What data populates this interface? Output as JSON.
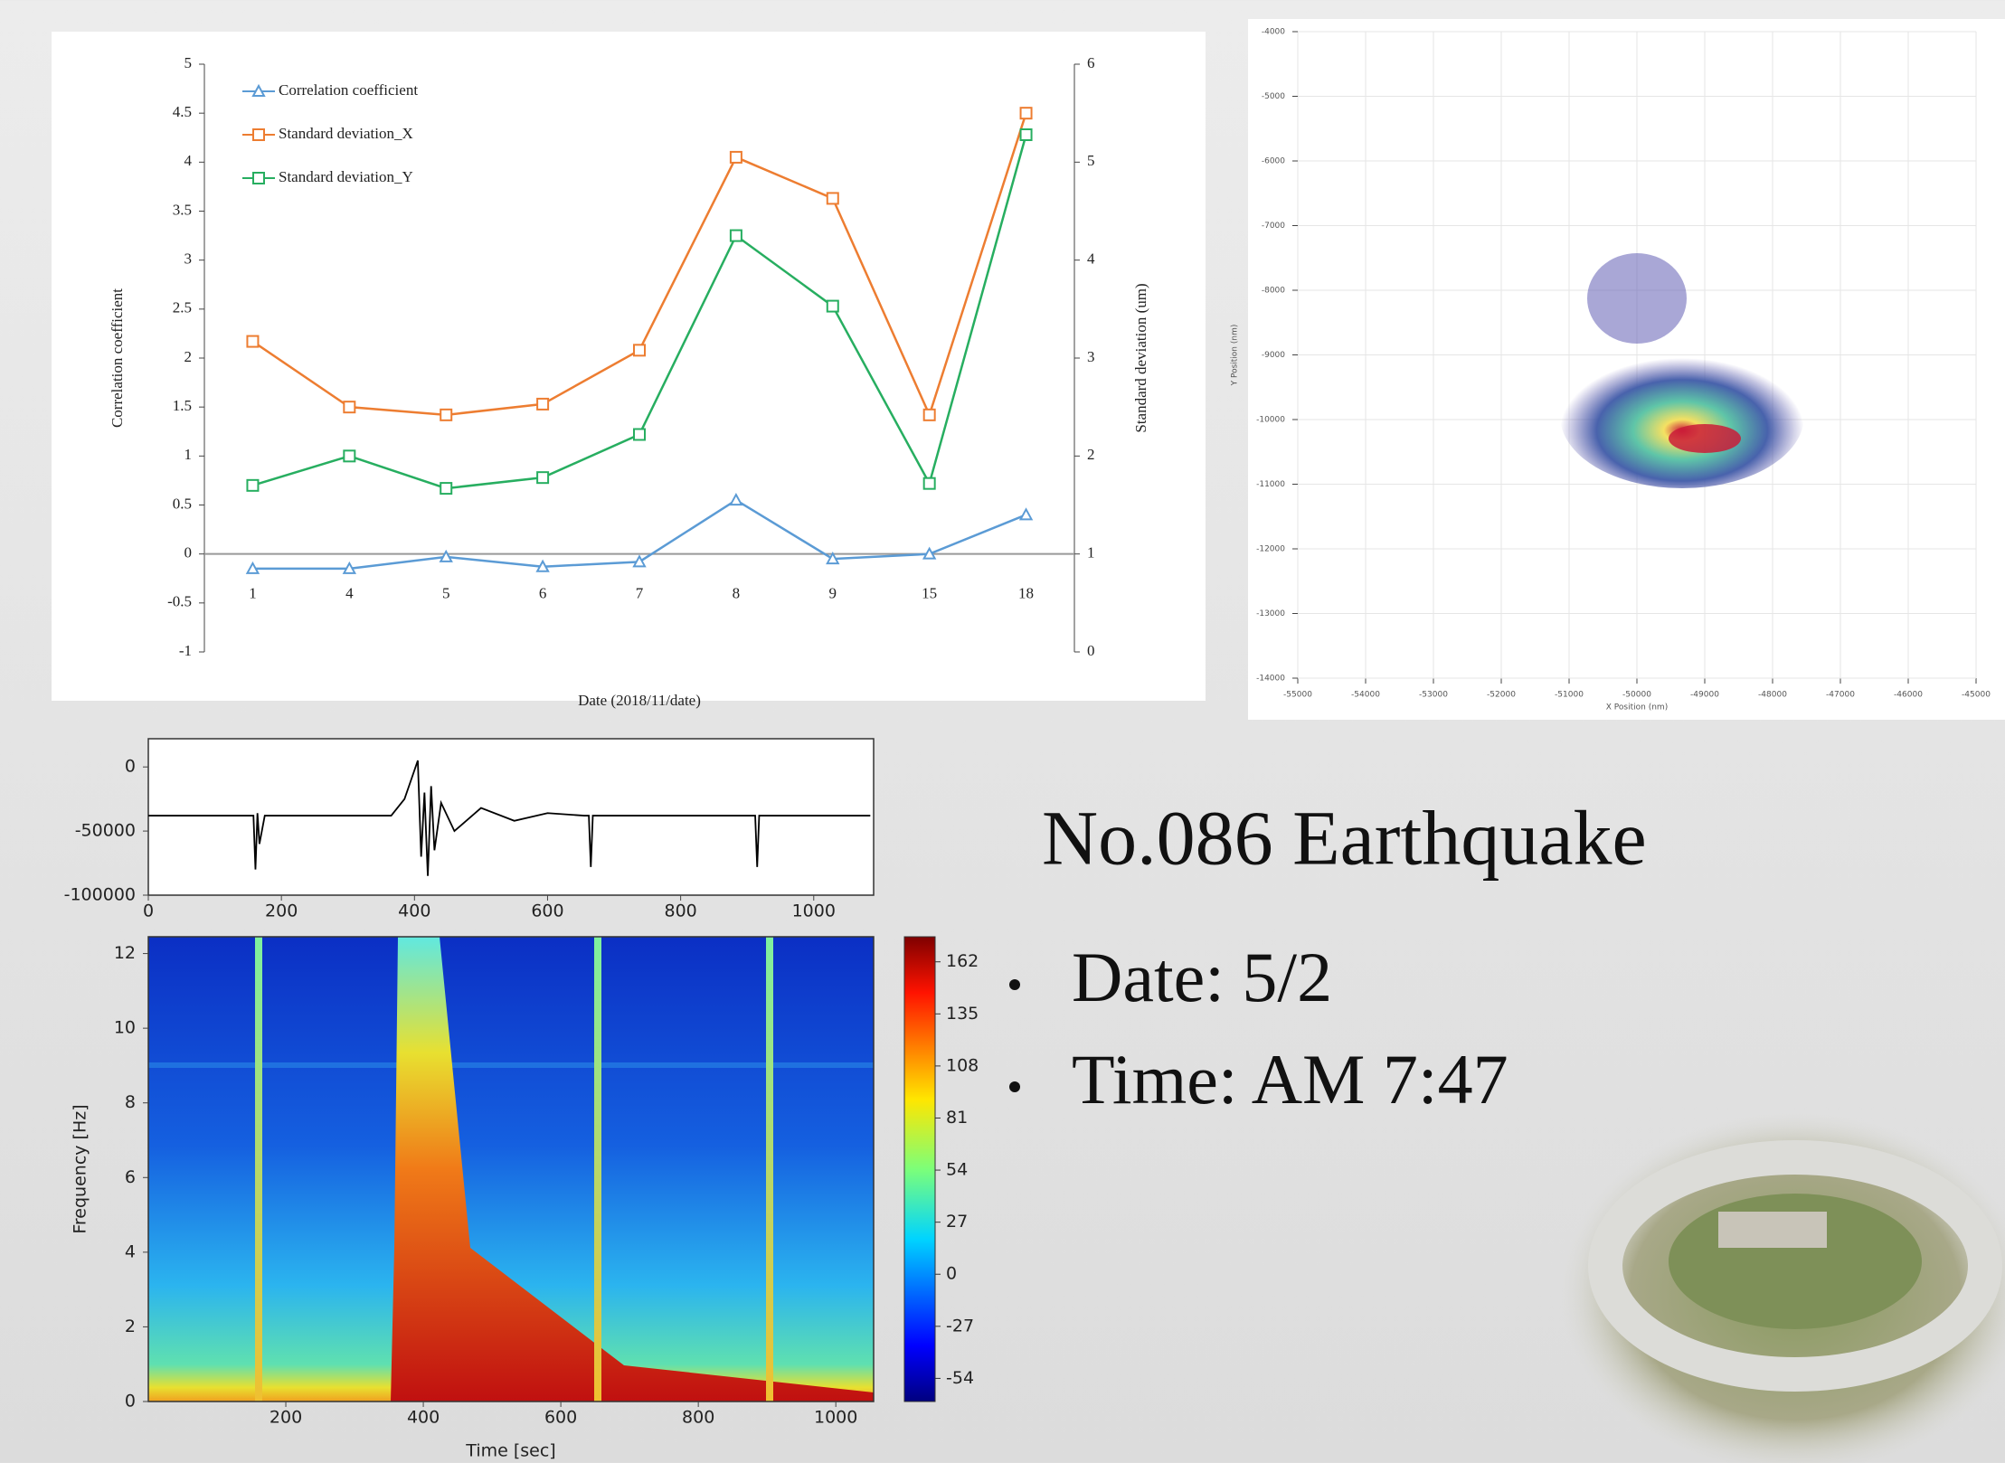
{
  "chart_data": [
    {
      "type": "line",
      "x_label": "Date (2018/11/date)",
      "y_label": "Correlation coefficient",
      "y2_label": "Standard deviation (um)",
      "categories": [
        "1",
        "4",
        "5",
        "6",
        "7",
        "8",
        "9",
        "15",
        "18"
      ],
      "ylim": [
        -1,
        5
      ],
      "yticks": [
        -1,
        -0.5,
        0,
        0.5,
        1,
        1.5,
        2,
        2.5,
        3,
        3.5,
        4,
        4.5,
        5
      ],
      "y2lim": [
        0,
        6
      ],
      "y2ticks": [
        0,
        1,
        2,
        3,
        4,
        5,
        6
      ],
      "legend": "top-left",
      "series": [
        {
          "name": "Correlation coefficient",
          "color": "#5b9bd5",
          "marker": "triangle",
          "values": [
            -0.15,
            -0.15,
            -0.03,
            -0.13,
            -0.08,
            0.55,
            -0.05,
            0,
            0.4
          ]
        },
        {
          "name": "Standard deviation_X",
          "color": "#ed7d31",
          "marker": "square",
          "axis": "y2",
          "values": [
            3.17,
            2.5,
            2.42,
            2.53,
            3.08,
            5.05,
            4.63,
            2.42,
            5.5
          ]
        },
        {
          "name": "Standard deviation_Y",
          "color": "#27ae60",
          "marker": "square",
          "axis": "y2",
          "values": [
            1.7,
            2.0,
            1.67,
            1.78,
            2.22,
            4.25,
            3.53,
            1.72,
            5.28
          ]
        }
      ]
    },
    {
      "type": "scatter",
      "x_label": "X Position (nm)",
      "y_label": "Y Position (nm)",
      "xlim": [
        -55000,
        -45000
      ],
      "xticks": [
        -55000,
        -54000,
        -53000,
        -52000,
        -51000,
        -50000,
        -49000,
        -48000,
        -47000,
        -46000,
        -45000
      ],
      "ylim": [
        -14000,
        -4000
      ],
      "yticks": [
        -4000,
        -5000,
        -6000,
        -7000,
        -8000,
        -9000,
        -10000,
        -11000,
        -12000,
        -13000,
        -14000
      ],
      "grid": true
    },
    {
      "type": "line",
      "xlim": [
        0,
        1090
      ],
      "xticks": [
        0,
        200,
        400,
        600,
        800,
        1000
      ],
      "ylim": [
        -100000,
        22000
      ],
      "yticks": [
        0,
        -50000,
        -100000
      ],
      "series": [
        {
          "color": "#000000",
          "x": [
            0,
            150,
            158,
            161,
            164,
            167,
            175,
            365,
            385,
            395,
            405,
            410,
            415,
            420,
            425,
            430,
            440,
            460,
            500,
            550,
            600,
            655,
            662,
            665,
            668,
            672,
            905,
            912,
            915,
            918,
            922,
            1085
          ],
          "values": [
            -38000,
            -38000,
            -38000,
            -80000,
            -36000,
            -60000,
            -38000,
            -38000,
            -25000,
            -10000,
            5000,
            -70000,
            -20000,
            -85000,
            -15000,
            -65000,
            -28000,
            -50000,
            -32000,
            -42000,
            -36000,
            -38000,
            -38000,
            -78000,
            -38000,
            -38000,
            -38000,
            -38000,
            -78000,
            -38000,
            -38000,
            -38000
          ]
        }
      ]
    },
    {
      "type": "heatmap",
      "x_label": "Time [sec]",
      "y_label": "Frequency [Hz]",
      "xlim": [
        0,
        1055
      ],
      "xticks": [
        200,
        400,
        600,
        800,
        1000
      ],
      "ylim": [
        0,
        12.45
      ],
      "yticks": [
        0,
        2,
        4,
        6,
        8,
        10,
        12
      ],
      "colorbar": {
        "lim": [
          -66,
          175
        ],
        "ticks": [
          -54,
          -27,
          0,
          27,
          54,
          81,
          108,
          135,
          162
        ]
      }
    }
  ],
  "text": {
    "heading": "No.086 Earthquake",
    "bullets": [
      "Date: 5/2",
      "Time: AM 7:47"
    ]
  }
}
